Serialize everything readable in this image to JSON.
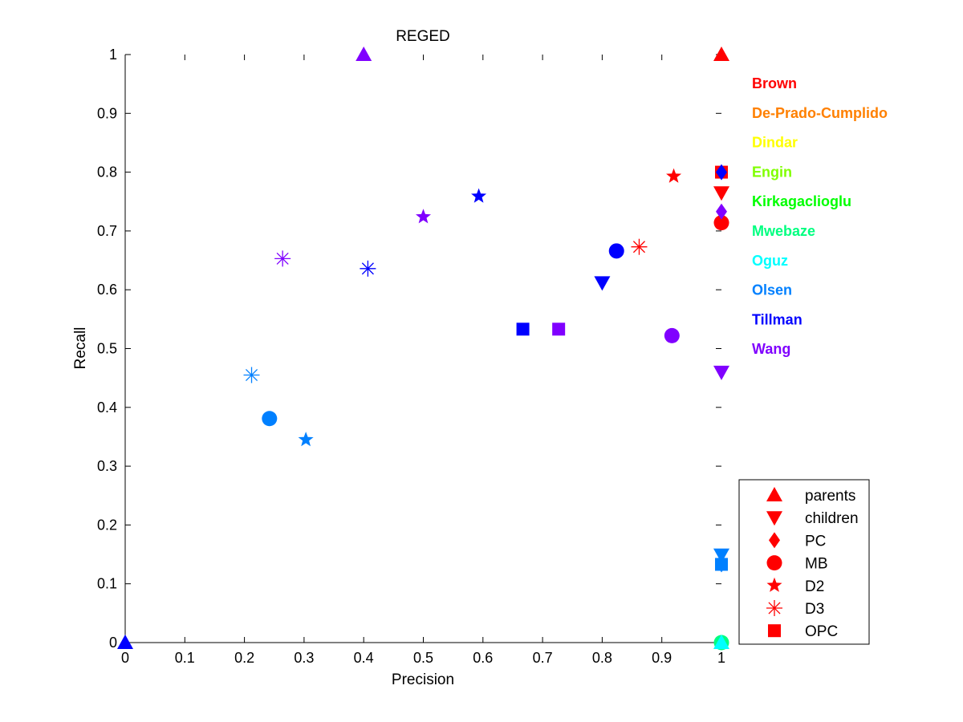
{
  "chart_data": {
    "type": "scatter",
    "title": "REGED",
    "xlabel": "Precision",
    "ylabel": "Recall",
    "xlim": [
      0,
      1
    ],
    "ylim": [
      0,
      1
    ],
    "x_ticks": [
      "0",
      "0.1",
      "0.2",
      "0.3",
      "0.4",
      "0.5",
      "0.6",
      "0.7",
      "0.8",
      "0.9",
      "1"
    ],
    "y_ticks": [
      "0",
      "0.1",
      "0.2",
      "0.3",
      "0.4",
      "0.5",
      "0.6",
      "0.7",
      "0.8",
      "0.9",
      "1"
    ],
    "grid": false,
    "teams": [
      {
        "name": "Brown",
        "color": "#ff0000"
      },
      {
        "name": "De-Prado-Cumplido",
        "color": "#ff8000"
      },
      {
        "name": "Dindar",
        "color": "#ffff00"
      },
      {
        "name": "Engin",
        "color": "#80ff00"
      },
      {
        "name": "Kirkagaclioglu",
        "color": "#00ff00"
      },
      {
        "name": "Mwebaze",
        "color": "#00ff80"
      },
      {
        "name": "Oguz",
        "color": "#00ffff"
      },
      {
        "name": "Olsen",
        "color": "#0080ff"
      },
      {
        "name": "Tillman",
        "color": "#0000ff"
      },
      {
        "name": "Wang",
        "color": "#8000ff"
      }
    ],
    "legend": {
      "placement": "bottom-right",
      "entries": [
        {
          "label": "parents",
          "marker": "triangle-up"
        },
        {
          "label": "children",
          "marker": "triangle-down"
        },
        {
          "label": "PC",
          "marker": "diamond"
        },
        {
          "label": "MB",
          "marker": "circle"
        },
        {
          "label": "D2",
          "marker": "star"
        },
        {
          "label": "D3",
          "marker": "asterisk"
        },
        {
          "label": "OPC",
          "marker": "square"
        }
      ]
    },
    "points": [
      {
        "team": "Brown",
        "marker": "triangle-up",
        "x": 1.0,
        "y": 1.0
      },
      {
        "team": "Brown",
        "marker": "triangle-down",
        "x": 1.0,
        "y": 0.765
      },
      {
        "team": "Brown",
        "marker": "square",
        "x": 1.0,
        "y": 0.8
      },
      {
        "team": "Brown",
        "marker": "circle",
        "x": 1.0,
        "y": 0.714
      },
      {
        "team": "Brown",
        "marker": "star",
        "x": 0.92,
        "y": 0.793
      },
      {
        "team": "Brown",
        "marker": "asterisk",
        "x": 0.862,
        "y": 0.673
      },
      {
        "team": "Wang",
        "marker": "triangle-up",
        "x": 0.4,
        "y": 1.0
      },
      {
        "team": "Wang",
        "marker": "star",
        "x": 0.5,
        "y": 0.724
      },
      {
        "team": "Wang",
        "marker": "asterisk",
        "x": 0.264,
        "y": 0.653
      },
      {
        "team": "Wang",
        "marker": "square",
        "x": 0.727,
        "y": 0.533
      },
      {
        "team": "Wang",
        "marker": "circle",
        "x": 0.917,
        "y": 0.522
      },
      {
        "team": "Wang",
        "marker": "triangle-down",
        "x": 1.0,
        "y": 0.46
      },
      {
        "team": "Wang",
        "marker": "diamond",
        "x": 1.0,
        "y": 0.733
      },
      {
        "team": "Tillman",
        "marker": "star",
        "x": 0.593,
        "y": 0.759
      },
      {
        "team": "Tillman",
        "marker": "asterisk",
        "x": 0.407,
        "y": 0.636
      },
      {
        "team": "Tillman",
        "marker": "circle",
        "x": 0.824,
        "y": 0.666
      },
      {
        "team": "Tillman",
        "marker": "triangle-down",
        "x": 0.8,
        "y": 0.612
      },
      {
        "team": "Tillman",
        "marker": "square",
        "x": 0.667,
        "y": 0.533
      },
      {
        "team": "Tillman",
        "marker": "diamond",
        "x": 1.0,
        "y": 0.8
      },
      {
        "team": "Tillman",
        "marker": "triangle-up",
        "x": 0.0,
        "y": 0.0
      },
      {
        "team": "Olsen",
        "marker": "asterisk",
        "x": 0.212,
        "y": 0.455
      },
      {
        "team": "Olsen",
        "marker": "circle",
        "x": 0.242,
        "y": 0.381
      },
      {
        "team": "Olsen",
        "marker": "star",
        "x": 0.303,
        "y": 0.345
      },
      {
        "team": "Olsen",
        "marker": "triangle-down",
        "x": 1.0,
        "y": 0.149
      },
      {
        "team": "Olsen",
        "marker": "diamond",
        "x": 1.0,
        "y": 0.133
      },
      {
        "team": "Olsen",
        "marker": "square",
        "x": 1.0,
        "y": 0.133
      },
      {
        "team": "Mwebaze",
        "marker": "circle",
        "x": 1.0,
        "y": 0.0
      },
      {
        "team": "Oguz",
        "marker": "triangle-up",
        "x": 1.0,
        "y": 0.0
      }
    ]
  }
}
